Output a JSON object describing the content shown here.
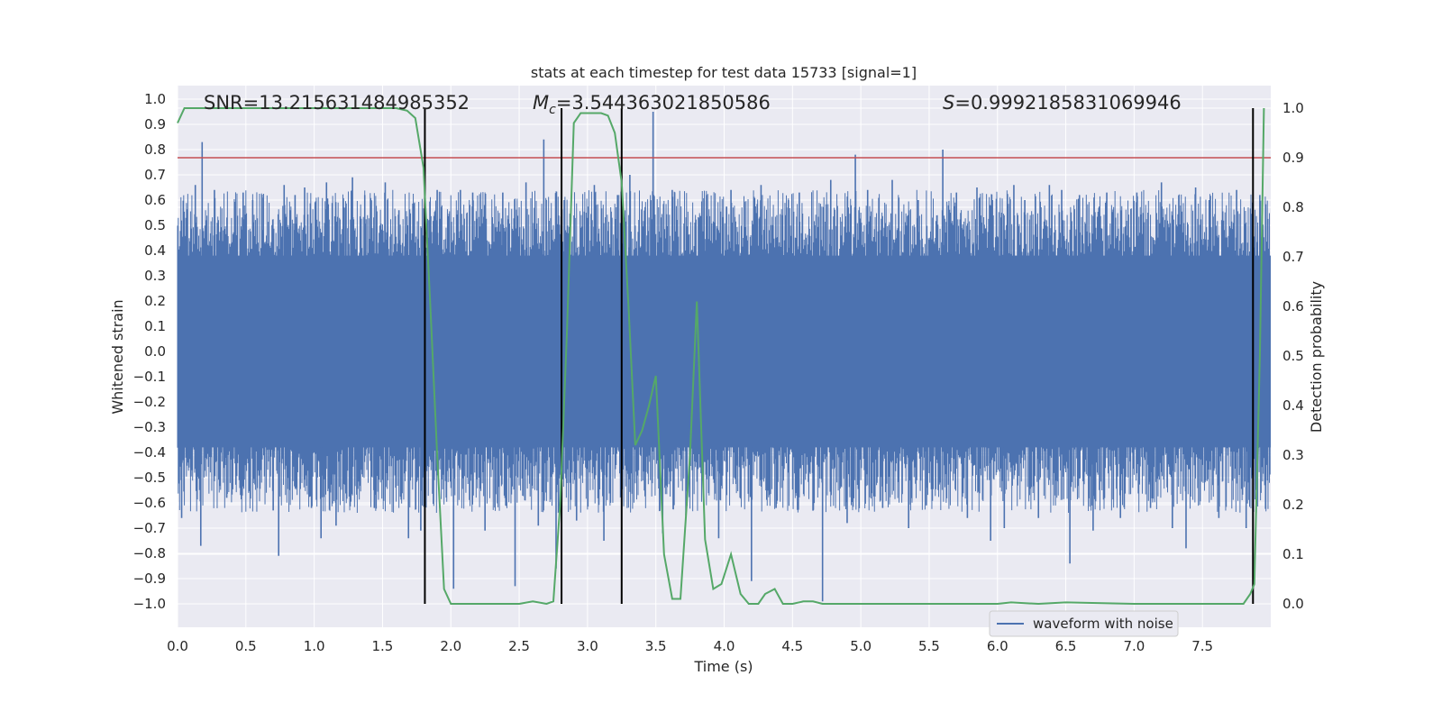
{
  "chart_data": {
    "type": "line",
    "title": "stats at each timestep for test data 15733 [signal=1]",
    "xlabel": "Time (s)",
    "ylabel_left": "Whitened strain",
    "ylabel_right": "Detection probability",
    "xlim": [
      0,
      8
    ],
    "ylim_left": [
      -1.1,
      1.05
    ],
    "ylim_right": [
      -0.045,
      1.045
    ],
    "x_ticks": [
      "0.0",
      "0.5",
      "1.0",
      "1.5",
      "2.0",
      "2.5",
      "3.0",
      "3.5",
      "4.0",
      "4.5",
      "5.0",
      "5.5",
      "6.0",
      "6.5",
      "7.0",
      "7.5"
    ],
    "x_tick_values": [
      0,
      0.5,
      1,
      1.5,
      2,
      2.5,
      3,
      3.5,
      4,
      4.5,
      5,
      5.5,
      6,
      6.5,
      7,
      7.5
    ],
    "y_left_ticks": [
      "1.0",
      "0.9",
      "0.8",
      "0.7",
      "0.6",
      "0.5",
      "0.4",
      "0.3",
      "0.2",
      "0.1",
      "0.0",
      "−0.1",
      "−0.2",
      "−0.3",
      "−0.4",
      "−0.5",
      "−0.6",
      "−0.7",
      "−0.8",
      "−0.9",
      "−1.0"
    ],
    "y_left_tick_values": [
      1.0,
      0.9,
      0.8,
      0.7,
      0.6,
      0.5,
      0.4,
      0.3,
      0.2,
      0.1,
      0.0,
      -0.1,
      -0.2,
      -0.3,
      -0.4,
      -0.5,
      -0.6,
      -0.7,
      -0.8,
      -0.9,
      -1.0
    ],
    "y_right_ticks": [
      "1.0",
      "0.9",
      "0.8",
      "0.7",
      "0.6",
      "0.5",
      "0.4",
      "0.3",
      "0.2",
      "0.1",
      "0.0"
    ],
    "y_right_tick_values": [
      1.0,
      0.9,
      0.8,
      0.7,
      0.6,
      0.5,
      0.4,
      0.3,
      0.2,
      0.1,
      0.0
    ],
    "annotations": {
      "snr": "SNR=13.215631484985352",
      "mc_symbol": "M",
      "mc_subscript": "c",
      "mc_value": "=3.544363021850586",
      "s_symbol": "S",
      "s_value": "=0.9992185831069946"
    },
    "legend": {
      "label": "waveform with noise",
      "position": "lower-right"
    },
    "threshold_line": {
      "value_right": 0.9,
      "color": "#c44e52"
    },
    "vertical_markers_s": [
      1.81,
      2.81,
      3.25,
      7.87
    ],
    "waveform": {
      "name": "waveform with noise",
      "color": "#4c72b0",
      "dense_band": [
        -0.38,
        0.38
      ],
      "spikes": [
        [
          0.03,
          -0.66
        ],
        [
          0.05,
          0.44
        ],
        [
          0.13,
          0.66
        ],
        [
          0.17,
          -0.77
        ],
        [
          0.18,
          0.83
        ],
        [
          0.27,
          0.64
        ],
        [
          0.36,
          -0.58
        ],
        [
          0.48,
          0.63
        ],
        [
          0.55,
          0.6
        ],
        [
          0.62,
          0.61
        ],
        [
          0.7,
          -0.63
        ],
        [
          0.74,
          -0.81
        ],
        [
          0.78,
          0.66
        ],
        [
          0.86,
          0.62
        ],
        [
          0.93,
          0.65
        ],
        [
          0.98,
          -0.62
        ],
        [
          1.05,
          -0.74
        ],
        [
          1.09,
          0.67
        ],
        [
          1.16,
          -0.69
        ],
        [
          1.22,
          0.57
        ],
        [
          1.28,
          0.69
        ],
        [
          1.37,
          0.62
        ],
        [
          1.44,
          -0.62
        ],
        [
          1.52,
          0.67
        ],
        [
          1.62,
          0.56
        ],
        [
          1.69,
          -0.74
        ],
        [
          1.78,
          -0.71
        ],
        [
          1.84,
          0.52
        ],
        [
          1.9,
          0.64
        ],
        [
          2.02,
          -0.94
        ],
        [
          2.07,
          0.64
        ],
        [
          2.16,
          0.63
        ],
        [
          2.25,
          -0.71
        ],
        [
          2.38,
          0.63
        ],
        [
          2.47,
          -0.93
        ],
        [
          2.55,
          0.67
        ],
        [
          2.64,
          -0.69
        ],
        [
          2.68,
          0.84
        ],
        [
          2.77,
          -0.86
        ],
        [
          2.83,
          0.6
        ],
        [
          2.92,
          -0.67
        ],
        [
          3.05,
          0.66
        ],
        [
          3.12,
          -0.75
        ],
        [
          3.22,
          0.62
        ],
        [
          3.31,
          0.7
        ],
        [
          3.48,
          0.95
        ],
        [
          3.55,
          -0.72
        ],
        [
          3.62,
          0.64
        ],
        [
          3.72,
          -0.65
        ],
        [
          3.87,
          0.62
        ],
        [
          3.96,
          -0.74
        ],
        [
          4.05,
          0.64
        ],
        [
          4.2,
          -0.91
        ],
        [
          4.27,
          0.66
        ],
        [
          4.38,
          -0.62
        ],
        [
          4.47,
          0.6
        ],
        [
          4.55,
          0.63
        ],
        [
          4.65,
          -0.63
        ],
        [
          4.72,
          -0.99
        ],
        [
          4.78,
          0.68
        ],
        [
          4.9,
          -0.68
        ],
        [
          4.96,
          0.78
        ],
        [
          5.05,
          0.64
        ],
        [
          5.16,
          -0.62
        ],
        [
          5.23,
          0.68
        ],
        [
          5.35,
          -0.7
        ],
        [
          5.42,
          0.6
        ],
        [
          5.48,
          -0.61
        ],
        [
          5.6,
          0.8
        ],
        [
          5.7,
          0.63
        ],
        [
          5.78,
          -0.66
        ],
        [
          5.85,
          0.65
        ],
        [
          5.95,
          -0.75
        ],
        [
          6.05,
          -0.7
        ],
        [
          6.12,
          0.66
        ],
        [
          6.2,
          0.6
        ],
        [
          6.3,
          -0.66
        ],
        [
          6.38,
          0.66
        ],
        [
          6.47,
          0.64
        ],
        [
          6.53,
          -0.84
        ],
        [
          6.6,
          0.62
        ],
        [
          6.7,
          -0.71
        ],
        [
          6.8,
          0.63
        ],
        [
          6.9,
          -0.66
        ],
        [
          7.02,
          0.63
        ],
        [
          7.12,
          -0.62
        ],
        [
          7.2,
          0.67
        ],
        [
          7.28,
          -0.7
        ],
        [
          7.38,
          -0.78
        ],
        [
          7.45,
          0.65
        ],
        [
          7.55,
          0.6
        ],
        [
          7.62,
          -0.66
        ],
        [
          7.75,
          0.64
        ],
        [
          7.82,
          -0.7
        ],
        [
          7.92,
          0.62
        ]
      ]
    },
    "detection_probability": {
      "color": "#55a868",
      "x": [
        0.0,
        0.05,
        0.1,
        0.5,
        1.0,
        1.5,
        1.6,
        1.68,
        1.74,
        1.8,
        1.85,
        1.9,
        1.95,
        2.0,
        2.1,
        2.3,
        2.5,
        2.6,
        2.7,
        2.75,
        2.8,
        2.85,
        2.9,
        2.95,
        3.0,
        3.1,
        3.15,
        3.2,
        3.25,
        3.3,
        3.35,
        3.4,
        3.45,
        3.5,
        3.56,
        3.62,
        3.68,
        3.75,
        3.8,
        3.86,
        3.92,
        3.98,
        4.05,
        4.12,
        4.18,
        4.25,
        4.3,
        4.37,
        4.43,
        4.5,
        4.58,
        4.65,
        4.72,
        4.8,
        5.0,
        5.5,
        6.0,
        6.1,
        6.3,
        6.5,
        7.0,
        7.5,
        7.7,
        7.8,
        7.85,
        7.88,
        7.92,
        7.95
      ],
      "y": [
        0.97,
        1.0,
        1.0,
        1.0,
        1.0,
        1.0,
        1.0,
        0.995,
        0.98,
        0.88,
        0.6,
        0.3,
        0.03,
        0.0,
        0.0,
        0.0,
        0.0,
        0.005,
        0.0,
        0.005,
        0.2,
        0.55,
        0.97,
        0.99,
        0.99,
        0.99,
        0.985,
        0.95,
        0.85,
        0.6,
        0.32,
        0.35,
        0.4,
        0.46,
        0.1,
        0.01,
        0.01,
        0.3,
        0.61,
        0.13,
        0.03,
        0.04,
        0.1,
        0.02,
        0.0,
        0.0,
        0.02,
        0.03,
        0.0,
        0.0,
        0.005,
        0.005,
        0.0,
        0.0,
        0.0,
        0.0,
        0.0,
        0.003,
        0.0,
        0.003,
        0.0,
        0.0,
        0.0,
        0.0,
        0.02,
        0.04,
        0.5,
        1.0
      ]
    }
  }
}
